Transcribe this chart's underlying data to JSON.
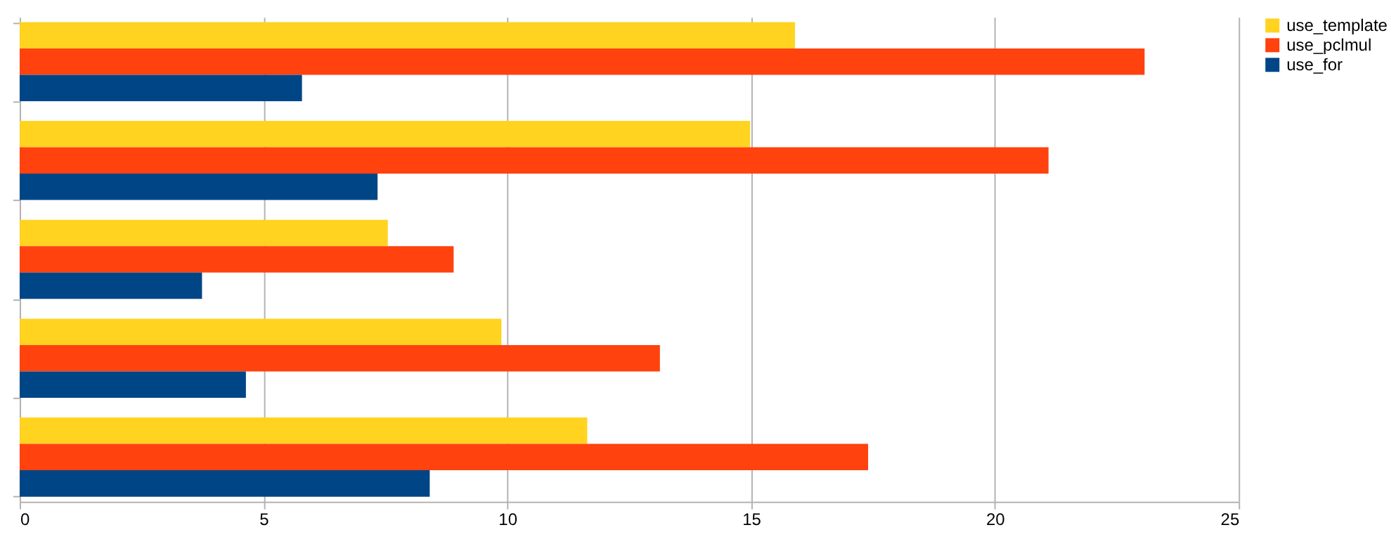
{
  "chart_data": {
    "type": "bar",
    "orientation": "horizontal",
    "categories": [
      null,
      null,
      null,
      null,
      null
    ],
    "series": [
      {
        "name": "use_template",
        "color": "#ffd320",
        "values": [
          15.9,
          14.98,
          7.55,
          9.88,
          11.64
        ]
      },
      {
        "name": "use_pclmul",
        "color": "#ff420e",
        "values": [
          23.07,
          21.1,
          8.9,
          13.13,
          17.4
        ]
      },
      {
        "name": "use_for",
        "color": "#004586",
        "values": [
          5.79,
          7.34,
          3.74,
          4.64,
          8.41
        ]
      }
    ],
    "xlim": [
      0,
      25
    ],
    "xticks": [
      0,
      5,
      10,
      15,
      20,
      25
    ],
    "grid": "x",
    "legend": "top right",
    "tick_labels": "x"
  }
}
